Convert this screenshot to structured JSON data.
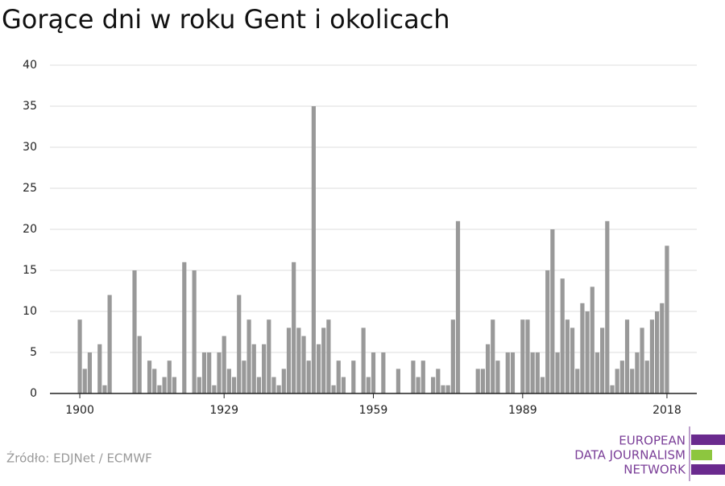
{
  "chart_data": {
    "type": "bar",
    "title": "Gorące dni w roku Gent i okolicach",
    "x": [
      1900,
      1901,
      1902,
      1903,
      1904,
      1905,
      1906,
      1907,
      1908,
      1909,
      1910,
      1911,
      1912,
      1913,
      1914,
      1915,
      1916,
      1917,
      1918,
      1919,
      1920,
      1921,
      1922,
      1923,
      1924,
      1925,
      1926,
      1927,
      1928,
      1929,
      1930,
      1931,
      1932,
      1933,
      1934,
      1935,
      1936,
      1937,
      1938,
      1939,
      1940,
      1941,
      1942,
      1943,
      1944,
      1945,
      1946,
      1947,
      1948,
      1949,
      1950,
      1951,
      1952,
      1953,
      1954,
      1955,
      1956,
      1957,
      1958,
      1959,
      1960,
      1961,
      1962,
      1963,
      1964,
      1965,
      1966,
      1967,
      1968,
      1969,
      1970,
      1971,
      1972,
      1973,
      1974,
      1975,
      1976,
      1977,
      1978,
      1979,
      1980,
      1981,
      1982,
      1983,
      1984,
      1985,
      1986,
      1987,
      1988,
      1989,
      1990,
      1991,
      1992,
      1993,
      1994,
      1995,
      1996,
      1997,
      1998,
      1999,
      2000,
      2001,
      2002,
      2003,
      2004,
      2005,
      2006,
      2007,
      2008,
      2009,
      2010,
      2011,
      2012,
      2013,
      2014,
      2015,
      2016,
      2017,
      2018
    ],
    "values": [
      9,
      3,
      5,
      0,
      6,
      1,
      12,
      0,
      0,
      0,
      0,
      15,
      7,
      0,
      4,
      3,
      1,
      2,
      4,
      2,
      0,
      16,
      0,
      15,
      2,
      5,
      5,
      1,
      5,
      7,
      3,
      2,
      12,
      4,
      9,
      6,
      2,
      6,
      9,
      2,
      1,
      3,
      8,
      16,
      8,
      7,
      4,
      35,
      6,
      8,
      9,
      1,
      4,
      2,
      0,
      4,
      0,
      8,
      2,
      5,
      0,
      5,
      0,
      0,
      3,
      0,
      0,
      4,
      2,
      4,
      0,
      2,
      3,
      1,
      1,
      9,
      21,
      0,
      0,
      0,
      3,
      3,
      6,
      9,
      4,
      0,
      5,
      5,
      0,
      9,
      9,
      5,
      5,
      2,
      15,
      20,
      5,
      14,
      9,
      8,
      3,
      11,
      10,
      13,
      5,
      8,
      21,
      1,
      3,
      4,
      9,
      3,
      5,
      8,
      4,
      9,
      10,
      11,
      18
    ],
    "color": "#999999",
    "xlim": [
      1894,
      2024
    ],
    "xticks": [
      1900,
      1929,
      1959,
      1989,
      2018
    ],
    "ylim": [
      0,
      40
    ],
    "yticks": [
      0,
      5,
      10,
      15,
      20,
      25,
      30,
      35,
      40
    ],
    "grid": true,
    "source": "Źródło: EDJNet / ECMWF",
    "logo": [
      "EUROPEAN",
      "DATA JOURNALISM",
      "NETWORK"
    ]
  }
}
